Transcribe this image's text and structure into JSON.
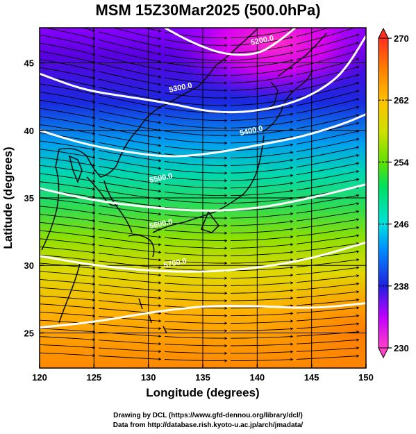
{
  "chart_data": {
    "type": "heatmap",
    "title": "MSM 15Z30Mar2025 (500.0hPa)",
    "xlabel": "Longitude (degrees)",
    "ylabel": "Latitude  (degrees)",
    "xlim": [
      120,
      150
    ],
    "ylim": [
      22.4,
      47.6
    ],
    "x_ticks": [
      120,
      125,
      130,
      135,
      140,
      145,
      150
    ],
    "y_ticks": [
      25,
      30,
      35,
      40,
      45
    ],
    "grid": true,
    "colorbar": {
      "min": 230,
      "max": 270,
      "ticks": [
        230,
        238,
        246,
        254,
        262,
        270
      ],
      "placement": "right",
      "colors": [
        "#ff40c8",
        "#c000ff",
        "#2020e0",
        "#0090ff",
        "#00e0e0",
        "#00e060",
        "#60e000",
        "#d0e000",
        "#ffc000",
        "#ff8000",
        "#ff3020"
      ]
    },
    "contours": [
      {
        "label": "5200.0",
        "points": [
          [
            131.5,
            47.6
          ],
          [
            134,
            46.5
          ],
          [
            137,
            45.6
          ],
          [
            140,
            45.6
          ],
          [
            142,
            46.6
          ],
          [
            143.5,
            47.6
          ]
        ]
      },
      {
        "label": "5300.0",
        "points": [
          [
            120,
            44.2
          ],
          [
            124,
            43.0
          ],
          [
            128,
            42.5
          ],
          [
            132,
            42.0
          ],
          [
            136,
            41.3
          ],
          [
            140,
            41.4
          ],
          [
            144,
            42.2
          ],
          [
            147,
            43.6
          ],
          [
            148.5,
            45
          ],
          [
            150,
            47
          ]
        ]
      },
      {
        "label": "5400.0",
        "points": [
          [
            120,
            40.0
          ],
          [
            124,
            39.0
          ],
          [
            128,
            38.4
          ],
          [
            132,
            38.0
          ],
          [
            136,
            38.3
          ],
          [
            140,
            38.9
          ],
          [
            144,
            39.5
          ],
          [
            148,
            40.5
          ],
          [
            150,
            41.2
          ]
        ]
      },
      {
        "label": "5500.0",
        "points": [
          [
            120,
            35.7
          ],
          [
            125,
            34.8
          ],
          [
            130,
            34.3
          ],
          [
            135,
            34.0
          ],
          [
            140,
            34.2
          ],
          [
            145,
            35.0
          ],
          [
            150,
            36.0
          ]
        ]
      },
      {
        "label": "5600.0",
        "points": [
          [
            120,
            30.7
          ],
          [
            125,
            30.0
          ],
          [
            130,
            29.6
          ],
          [
            135,
            29.5
          ],
          [
            140,
            29.8
          ],
          [
            145,
            30.5
          ],
          [
            150,
            31.7
          ]
        ]
      },
      {
        "label": "5700.0",
        "points": [
          [
            120,
            25.4
          ],
          [
            125,
            25.8
          ],
          [
            130,
            26.5
          ],
          [
            135,
            27.0
          ],
          [
            140,
            27.0
          ],
          [
            145,
            26.8
          ],
          [
            150,
            27.2
          ]
        ]
      }
    ],
    "contour_label_positions": [
      [
        140.5,
        46.5
      ],
      [
        133,
        43.0
      ],
      [
        139.5,
        39.8
      ],
      [
        131.2,
        36.3
      ],
      [
        131.2,
        32.9
      ],
      [
        132.5,
        30.0
      ],
      [
        130.8,
        26.7
      ]
    ]
  },
  "credits": {
    "line1": "Drawing by DCL (https://www.gfd-dennou.org/library/dcl/)",
    "line2": "Data from http://database.rish.kyoto-u.ac.jp/arch/jmadata/"
  }
}
